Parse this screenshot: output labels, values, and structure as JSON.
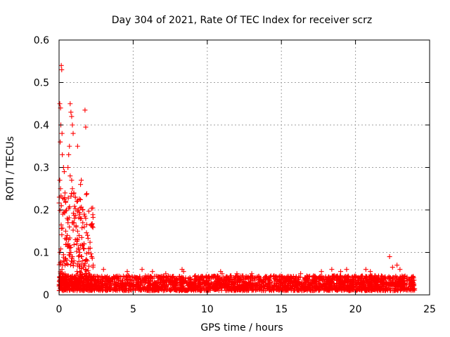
{
  "chart_data": {
    "type": "scatter",
    "title": "Day 304 of 2021, Rate Of TEC Index for receiver scrz",
    "xlabel": "GPS time / hours",
    "ylabel": "ROTI / TECUs",
    "xlim": [
      0,
      25
    ],
    "ylim": [
      0,
      0.6
    ],
    "x_ticks": [
      "0",
      "5",
      "10",
      "15",
      "20",
      "25"
    ],
    "y_ticks": [
      "0",
      "0.1",
      "0.2",
      "0.3",
      "0.4",
      "0.5",
      "0.6"
    ],
    "x_tick_values": [
      0,
      5,
      10,
      15,
      20,
      25
    ],
    "y_tick_values": [
      0,
      0.1,
      0.2,
      0.3,
      0.4,
      0.5,
      0.6
    ],
    "grid": true,
    "marker": "+",
    "series": [
      {
        "name": "ROTI",
        "color": "#ff0000",
        "points": [
          [
            0.05,
            0.45
          ],
          [
            0.1,
            0.44
          ],
          [
            0.15,
            0.54
          ],
          [
            0.18,
            0.53
          ],
          [
            0.12,
            0.4
          ],
          [
            0.2,
            0.38
          ],
          [
            0.08,
            0.36
          ],
          [
            0.22,
            0.33
          ],
          [
            0.3,
            0.3
          ],
          [
            0.35,
            0.29
          ],
          [
            0.05,
            0.27
          ],
          [
            0.1,
            0.25
          ],
          [
            0.4,
            0.24
          ],
          [
            0.45,
            0.22
          ],
          [
            0.02,
            0.23
          ],
          [
            0.15,
            0.21
          ],
          [
            0.25,
            0.19
          ],
          [
            0.5,
            0.2
          ],
          [
            0.55,
            0.18
          ],
          [
            0.6,
            0.17
          ],
          [
            0.7,
            0.16
          ],
          [
            0.75,
            0.45
          ],
          [
            0.8,
            0.43
          ],
          [
            0.85,
            0.42
          ],
          [
            0.9,
            0.4
          ],
          [
            0.95,
            0.38
          ],
          [
            0.7,
            0.35
          ],
          [
            0.65,
            0.33
          ],
          [
            0.6,
            0.3
          ],
          [
            0.75,
            0.28
          ],
          [
            0.85,
            0.27
          ],
          [
            0.9,
            0.25
          ],
          [
            1.0,
            0.24
          ],
          [
            1.1,
            0.23
          ],
          [
            1.2,
            0.22
          ],
          [
            1.3,
            0.2
          ],
          [
            1.4,
            0.19
          ],
          [
            1.5,
            0.18
          ],
          [
            1.6,
            0.17
          ],
          [
            1.7,
            0.16
          ],
          [
            1.75,
            0.435
          ],
          [
            1.8,
            0.395
          ],
          [
            1.5,
            0.27
          ],
          [
            1.45,
            0.26
          ],
          [
            1.25,
            0.35
          ],
          [
            1.6,
            0.2
          ],
          [
            1.7,
            0.19
          ],
          [
            1.8,
            0.18
          ],
          [
            0.5,
            0.13
          ],
          [
            0.6,
            0.12
          ],
          [
            0.7,
            0.11
          ],
          [
            0.8,
            0.1
          ],
          [
            0.9,
            0.09
          ],
          [
            1.0,
            0.08
          ],
          [
            1.1,
            0.13
          ],
          [
            1.2,
            0.12
          ],
          [
            1.3,
            0.11
          ],
          [
            1.4,
            0.1
          ],
          [
            1.5,
            0.09
          ],
          [
            1.6,
            0.08
          ],
          [
            1.7,
            0.07
          ],
          [
            1.8,
            0.06
          ],
          [
            1.9,
            0.08
          ],
          [
            2.0,
            0.1
          ],
          [
            2.1,
            0.11
          ],
          [
            2.2,
            0.09
          ],
          [
            2.3,
            0.07
          ],
          [
            0.3,
            0.08
          ],
          [
            0.4,
            0.07
          ],
          [
            0.2,
            0.06
          ],
          [
            0.1,
            0.05
          ],
          [
            0.45,
            0.15
          ],
          [
            0.55,
            0.14
          ],
          [
            0.65,
            0.13
          ],
          [
            1.15,
            0.16
          ],
          [
            1.25,
            0.15
          ],
          [
            1.35,
            0.14
          ],
          [
            0.95,
            0.17
          ],
          [
            1.05,
            0.18
          ],
          [
            8.3,
            0.06
          ],
          [
            8.4,
            0.055
          ],
          [
            10.9,
            0.055
          ],
          [
            11.0,
            0.05
          ],
          [
            13.0,
            0.05
          ],
          [
            16.3,
            0.05
          ],
          [
            17.7,
            0.055
          ],
          [
            18.4,
            0.06
          ],
          [
            19.0,
            0.055
          ],
          [
            19.4,
            0.06
          ],
          [
            20.7,
            0.06
          ],
          [
            21.0,
            0.055
          ],
          [
            22.3,
            0.09
          ],
          [
            22.5,
            0.065
          ],
          [
            22.8,
            0.07
          ],
          [
            23.0,
            0.06
          ],
          [
            3.0,
            0.06
          ],
          [
            4.6,
            0.055
          ],
          [
            5.6,
            0.06
          ],
          [
            6.3,
            0.055
          ],
          [
            7.2,
            0.05
          ],
          [
            9.2,
            0.045
          ],
          [
            12.0,
            0.05
          ],
          [
            14.5,
            0.045
          ]
        ]
      }
    ],
    "band": {
      "x_start": 0.0,
      "x_end": 24.0,
      "y_low": 0.01,
      "y_high": 0.045,
      "seed": 304
    }
  }
}
